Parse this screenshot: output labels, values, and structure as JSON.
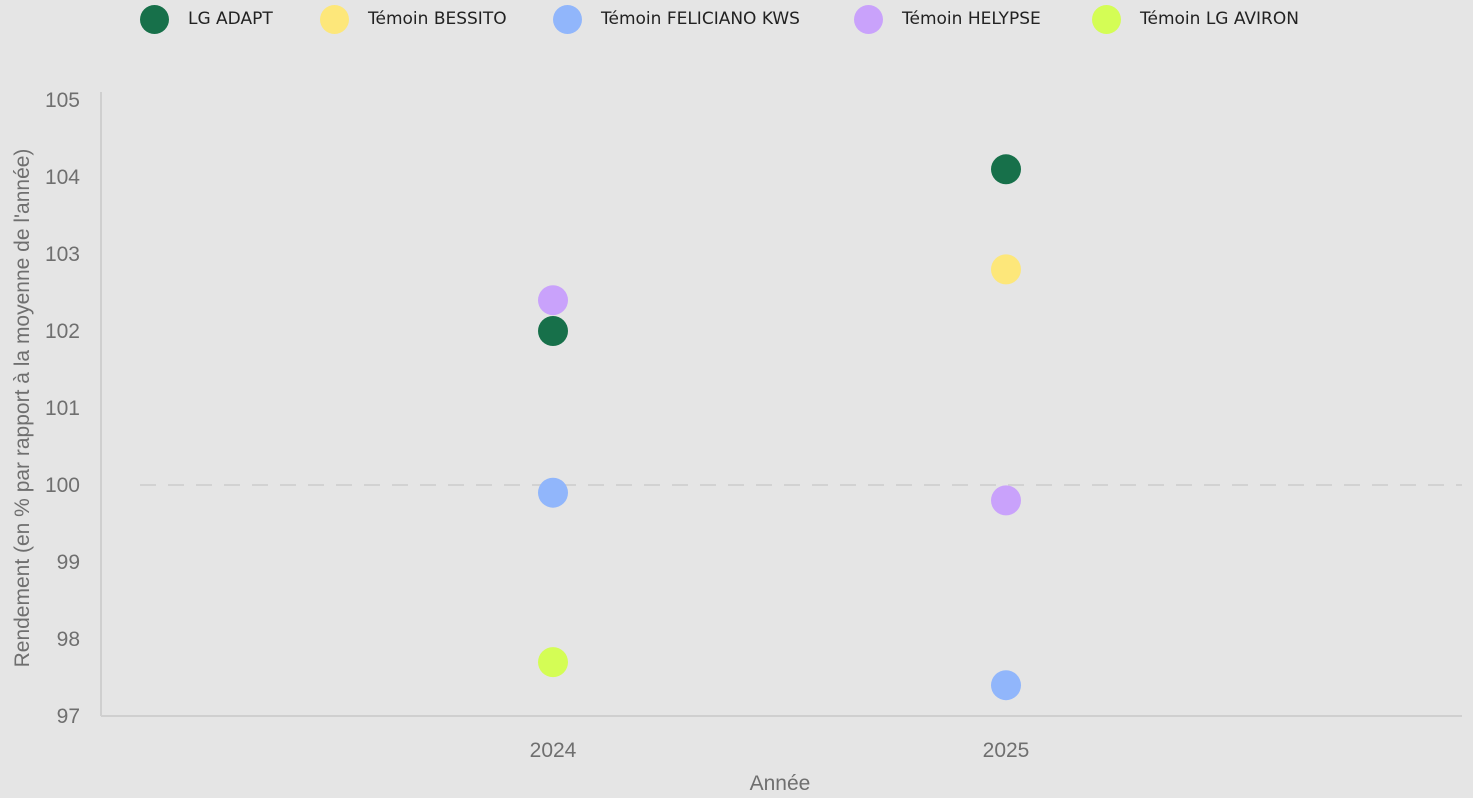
{
  "chart_data": {
    "type": "scatter",
    "title": "",
    "xlabel": "Année",
    "ylabel": "Rendement (en % par rapport à la moyenne de l'année)",
    "categories": [
      "2024",
      "2025"
    ],
    "ylim": [
      97,
      105
    ],
    "yticks": [
      "105",
      "104",
      "103",
      "102",
      "101",
      "100",
      "99",
      "98",
      "97"
    ],
    "reference_line": 100,
    "legend_position": "top",
    "grid": false,
    "series": [
      {
        "name": "LG ADAPT",
        "color": "#17704a",
        "values": [
          102.0,
          104.1
        ]
      },
      {
        "name": "Témoin BESSITO",
        "color": "#fde77a",
        "values": [
          null,
          102.8
        ]
      },
      {
        "name": "Témoin FELICIANO KWS",
        "color": "#91b6fb",
        "values": [
          99.9,
          97.4
        ]
      },
      {
        "name": "Témoin HELYPSE",
        "color": "#c9a2fb",
        "values": [
          102.4,
          99.8
        ]
      },
      {
        "name": "Témoin LG AVIRON",
        "color": "#d4fd55",
        "values": [
          97.7,
          null
        ]
      }
    ]
  }
}
